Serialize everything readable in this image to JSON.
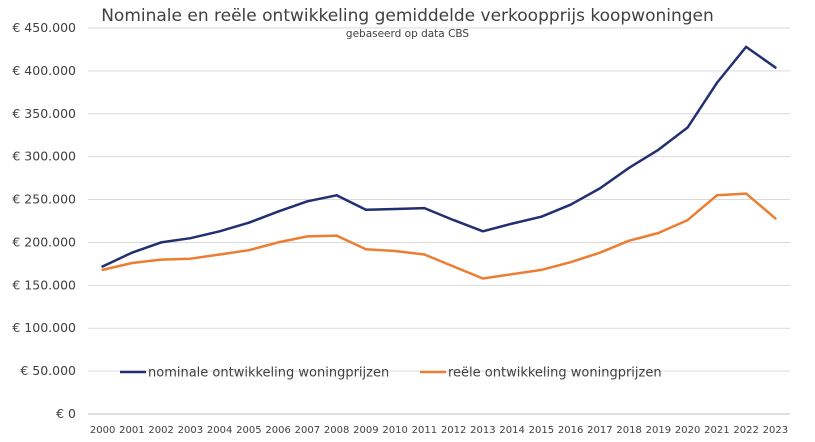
{
  "chart_data": {
    "type": "line",
    "title": "Nominale en reële ontwikkeling gemiddelde verkoopprijs koopwoningen",
    "subtitle": "gebaseerd op data CBS",
    "xlabel": "",
    "ylabel": "",
    "categories": [
      "2000",
      "2001",
      "2002",
      "2003",
      "2004",
      "2005",
      "2006",
      "2007",
      "2008",
      "2009",
      "2010",
      "2011",
      "2012",
      "2013",
      "2014",
      "2015",
      "2016",
      "2017",
      "2018",
      "2019",
      "2020",
      "2021",
      "2022",
      "2023"
    ],
    "ylim": [
      0,
      450000
    ],
    "y_ticks": [
      0,
      50000,
      100000,
      150000,
      200000,
      250000,
      300000,
      350000,
      400000,
      450000
    ],
    "y_tick_labels": [
      "€ 0",
      "€ 50.000",
      "€ 100.000",
      "€ 150.000",
      "€ 200.000",
      "€ 250.000",
      "€ 300.000",
      "€ 350.000",
      "€ 400.000",
      "€ 450.000"
    ],
    "grid": true,
    "legend_position": "bottom-inside",
    "series": [
      {
        "name": "nominale ontwikkeling woningprijzen",
        "color": "#203070",
        "values": [
          172000,
          188000,
          200000,
          205000,
          213000,
          223000,
          236000,
          248000,
          255000,
          238000,
          239000,
          240000,
          226000,
          213000,
          222000,
          230000,
          244000,
          263000,
          287000,
          308000,
          334000,
          386000,
          428000,
          404000
        ]
      },
      {
        "name": "reële ontwikkeling woningprijzen",
        "color": "#ed7d31",
        "values": [
          168000,
          176000,
          180000,
          181000,
          186000,
          191000,
          200000,
          207000,
          208000,
          192000,
          190000,
          186000,
          172000,
          158000,
          163000,
          168000,
          177000,
          188000,
          202000,
          211000,
          226000,
          255000,
          257000,
          228000
        ]
      }
    ]
  }
}
